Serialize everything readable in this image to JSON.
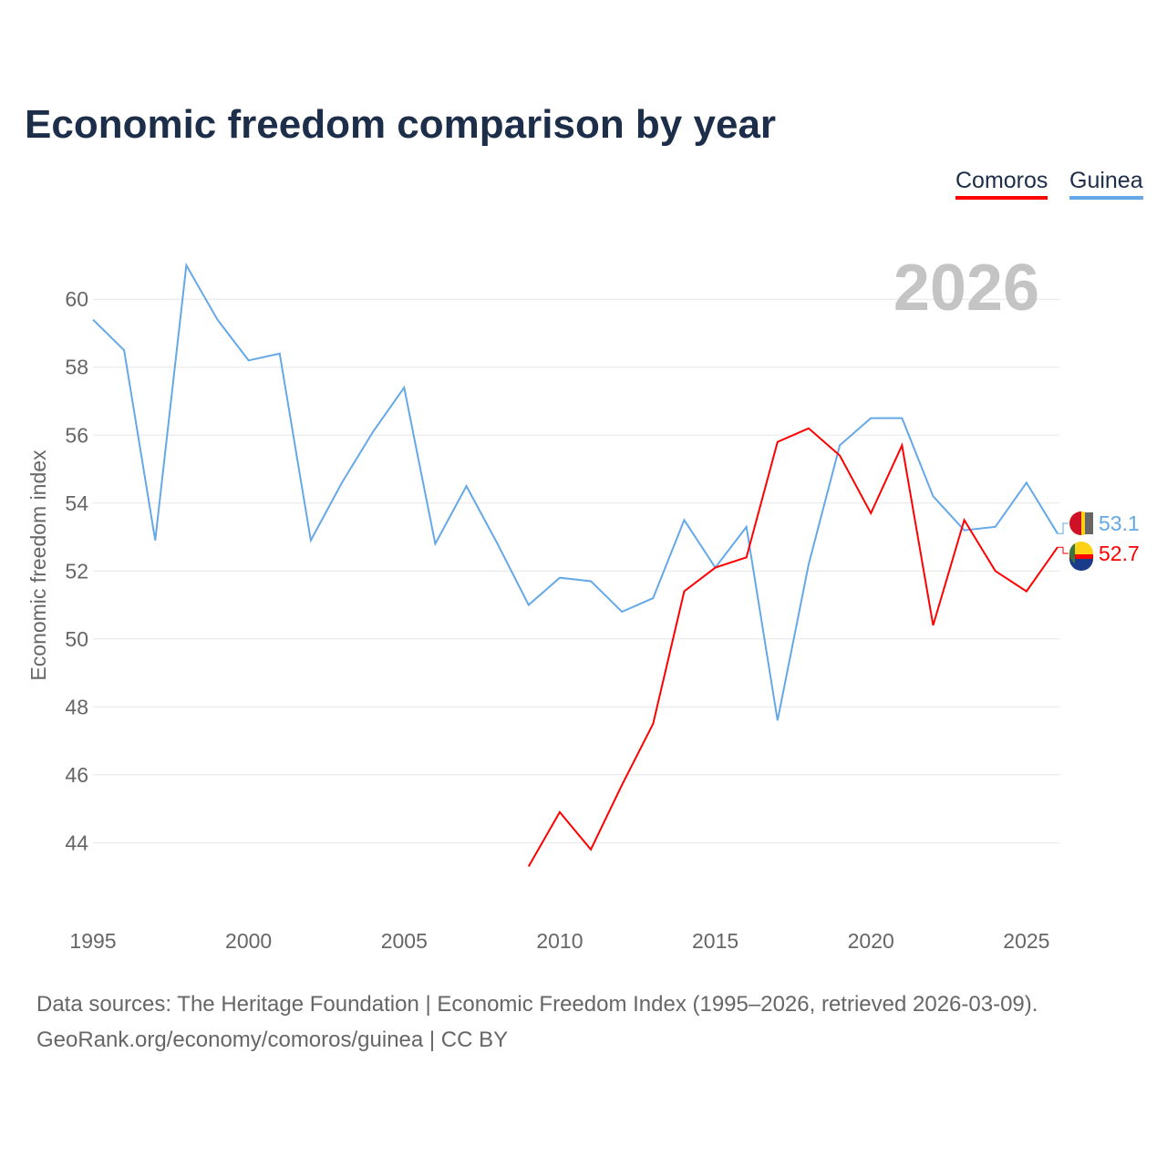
{
  "title": "Economic freedom comparison by year",
  "legend": [
    {
      "name": "Comoros",
      "color": "#ff0000"
    },
    {
      "name": "Guinea",
      "color": "#64a8e8"
    }
  ],
  "year_label": "2026",
  "footer": {
    "line1": "Data sources: The Heritage Foundation | Economic Freedom Index (1995–2026, retrieved 2026-03-09).",
    "line2": "GeoRank.org/economy/comoros/guinea | CC BY"
  },
  "chart_data": {
    "type": "line",
    "title": "Economic freedom comparison by year",
    "xlabel": "",
    "ylabel": "Economic freedom index",
    "xlim": [
      1995,
      2026
    ],
    "ylim": [
      41.7,
      62.1
    ],
    "xticks": [
      1995,
      2000,
      2005,
      2010,
      2015,
      2020,
      2025
    ],
    "yticks": [
      44,
      46,
      48,
      50,
      52,
      54,
      56,
      58,
      60
    ],
    "grid": true,
    "legend_position": "top-right",
    "series": [
      {
        "name": "Guinea",
        "color": "#64a8e8",
        "end_label": "53.1",
        "x": [
          1995,
          1996,
          1997,
          1998,
          1999,
          2000,
          2001,
          2002,
          2003,
          2004,
          2005,
          2006,
          2007,
          2008,
          2009,
          2010,
          2011,
          2012,
          2013,
          2014,
          2015,
          2016,
          2017,
          2018,
          2019,
          2020,
          2021,
          2022,
          2023,
          2024,
          2025,
          2026
        ],
        "y": [
          59.4,
          58.5,
          52.9,
          61.0,
          59.4,
          58.2,
          58.4,
          52.9,
          54.6,
          56.1,
          57.4,
          52.8,
          54.5,
          52.8,
          51.0,
          51.8,
          51.7,
          50.8,
          51.2,
          53.5,
          52.1,
          53.3,
          47.6,
          52.2,
          55.7,
          56.5,
          56.5,
          54.2,
          53.2,
          53.3,
          54.6,
          53.1
        ]
      },
      {
        "name": "Comoros",
        "color": "#ff0000",
        "end_label": "52.7",
        "x": [
          2009,
          2010,
          2011,
          2012,
          2013,
          2014,
          2015,
          2016,
          2017,
          2018,
          2019,
          2020,
          2021,
          2022,
          2023,
          2024,
          2025,
          2026
        ],
        "y": [
          43.3,
          44.9,
          43.8,
          45.7,
          47.5,
          51.4,
          52.1,
          52.4,
          55.8,
          56.2,
          55.4,
          53.7,
          55.7,
          50.4,
          53.5,
          52.0,
          51.4,
          52.7
        ]
      }
    ]
  }
}
